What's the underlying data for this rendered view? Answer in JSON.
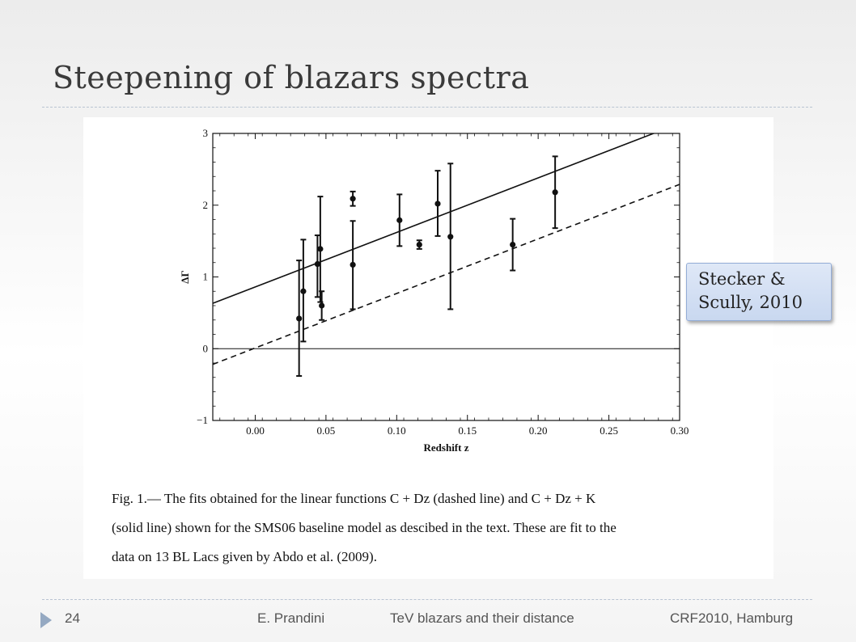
{
  "slide": {
    "title": "Steepening of blazars spectra",
    "callout": [
      "Stecker &",
      "Scully, 2010"
    ],
    "footer": {
      "page": "24",
      "author": "E. Prandini",
      "talk": "TeV blazars and their distance",
      "event": "CRF2010, Hamburg"
    }
  },
  "figure": {
    "caption": [
      "Fig. 1.— The fits obtained for the linear functions C + Dz (dashed line) and C + Dz + K",
      "(solid line) shown for the SMS06 baseline model as descibed in the text. These are fit to the",
      "data on 13 BL Lacs given by Abdo et al. (2009)."
    ]
  },
  "chart_data": {
    "type": "scatter",
    "title": "",
    "xlabel": "Redshift z",
    "ylabel": "ΔΓ",
    "xlim": [
      -0.03,
      0.3
    ],
    "ylim": [
      -1,
      3
    ],
    "xticks": [
      0.0,
      0.05,
      0.1,
      0.15,
      0.2,
      0.25,
      0.3
    ],
    "xtick_labels": [
      "0.00",
      "0.05",
      "0.10",
      "0.15",
      "0.20",
      "0.25",
      "0.30"
    ],
    "yticks": [
      -1,
      0,
      1,
      2,
      3
    ],
    "ytick_labels": [
      "−1",
      "0",
      "1",
      "2",
      "3"
    ],
    "grid": false,
    "colors": {
      "ink": "#111111"
    },
    "series": [
      {
        "type": "errorbar",
        "points": [
          {
            "x": 0.031,
            "y": 0.42,
            "lo": -0.38,
            "hi": 1.23
          },
          {
            "x": 0.034,
            "y": 0.8,
            "lo": 0.1,
            "hi": 1.52
          },
          {
            "x": 0.044,
            "y": 1.18,
            "lo": 0.72,
            "hi": 1.58
          },
          {
            "x": 0.046,
            "y": 1.39,
            "lo": 0.65,
            "hi": 2.12
          },
          {
            "x": 0.047,
            "y": 0.6,
            "lo": 0.4,
            "hi": 0.8
          },
          {
            "x": 0.069,
            "y": 1.17,
            "lo": 0.55,
            "hi": 1.78
          },
          {
            "x": 0.069,
            "y": 2.09,
            "lo": 1.99,
            "hi": 2.19
          },
          {
            "x": 0.102,
            "y": 1.79,
            "lo": 1.43,
            "hi": 2.15
          },
          {
            "x": 0.116,
            "y": 1.45,
            "lo": 1.39,
            "hi": 1.51
          },
          {
            "x": 0.129,
            "y": 2.02,
            "lo": 1.57,
            "hi": 2.48
          },
          {
            "x": 0.138,
            "y": 1.56,
            "lo": 0.55,
            "hi": 2.58
          },
          {
            "x": 0.182,
            "y": 1.45,
            "lo": 1.09,
            "hi": 1.81
          },
          {
            "x": 0.212,
            "y": 2.18,
            "lo": 1.68,
            "hi": 2.68
          }
        ]
      },
      {
        "type": "line",
        "style": "solid",
        "intercept": 0.86,
        "slope": 7.6
      },
      {
        "type": "line",
        "style": "dashed",
        "intercept": 0.01,
        "slope": 7.6
      },
      {
        "type": "line",
        "style": "solid-thin",
        "intercept": 0.0,
        "slope": 0.0
      }
    ]
  }
}
